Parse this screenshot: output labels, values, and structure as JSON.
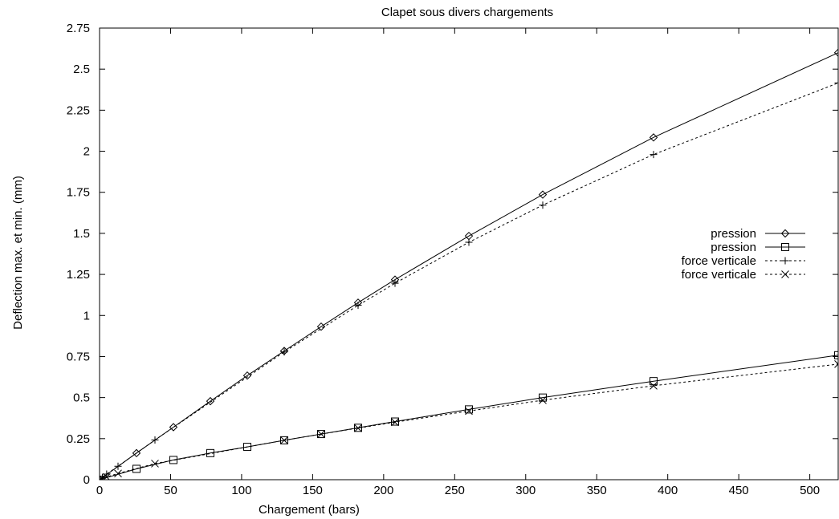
{
  "chart_data": {
    "type": "line",
    "title": "Clapet sous divers chargements",
    "xlabel": "Chargement (bars)",
    "ylabel": "Deflection max. et min. (mm)",
    "xlim": [
      0,
      520
    ],
    "ylim": [
      0,
      2.75
    ],
    "xticks": [
      0,
      50,
      100,
      150,
      200,
      250,
      300,
      350,
      400,
      450,
      500
    ],
    "yticks": [
      0,
      0.25,
      0.5,
      0.75,
      1,
      1.25,
      1.5,
      1.75,
      2,
      2.25,
      2.5,
      2.75
    ],
    "ytick_labels": [
      "0",
      "0.25",
      "0.5",
      "0.75",
      "1",
      "1.25",
      "1.5",
      "1.75",
      "2",
      "2.25",
      "2.5",
      "2.75"
    ],
    "grid": false,
    "legend_position": "right",
    "series": [
      {
        "name": "pression",
        "marker": "diamond",
        "line": "solid",
        "points": [
          [
            0,
            0
          ],
          [
            26,
            0.162
          ],
          [
            52,
            0.32
          ],
          [
            78,
            0.478
          ],
          [
            104,
            0.634
          ],
          [
            130,
            0.784
          ],
          [
            156,
            0.932
          ],
          [
            182,
            1.078
          ],
          [
            208,
            1.218
          ],
          [
            260,
            1.484
          ],
          [
            312,
            1.736
          ],
          [
            390,
            2.084
          ],
          [
            520,
            2.6
          ]
        ]
      },
      {
        "name": "pression",
        "marker": "square",
        "line": "solid",
        "points": [
          [
            0,
            0
          ],
          [
            26,
            0.066
          ],
          [
            52,
            0.12
          ],
          [
            78,
            0.162
          ],
          [
            104,
            0.2
          ],
          [
            130,
            0.24
          ],
          [
            156,
            0.278
          ],
          [
            182,
            0.316
          ],
          [
            208,
            0.354
          ],
          [
            260,
            0.428
          ],
          [
            312,
            0.5
          ],
          [
            390,
            0.6
          ],
          [
            520,
            0.758
          ]
        ]
      },
      {
        "name": "force verticale",
        "marker": "plus",
        "line": "dashed",
        "points": [
          [
            0,
            0
          ],
          [
            2,
            0.014
          ],
          [
            5,
            0.034
          ],
          [
            13,
            0.082
          ],
          [
            39,
            0.242
          ],
          [
            130,
            0.778
          ],
          [
            182,
            1.062
          ],
          [
            208,
            1.196
          ],
          [
            260,
            1.446
          ],
          [
            312,
            1.672
          ],
          [
            390,
            1.98
          ],
          [
            520,
            2.416
          ]
        ]
      },
      {
        "name": "force verticale",
        "marker": "cross",
        "line": "dashed",
        "points": [
          [
            0,
            0
          ],
          [
            2,
            0.006
          ],
          [
            5,
            0.016
          ],
          [
            13,
            0.038
          ],
          [
            39,
            0.098
          ],
          [
            130,
            0.24
          ],
          [
            156,
            0.278
          ],
          [
            182,
            0.314
          ],
          [
            208,
            0.35
          ],
          [
            260,
            0.418
          ],
          [
            312,
            0.484
          ],
          [
            390,
            0.572
          ],
          [
            520,
            0.704
          ]
        ]
      }
    ]
  }
}
